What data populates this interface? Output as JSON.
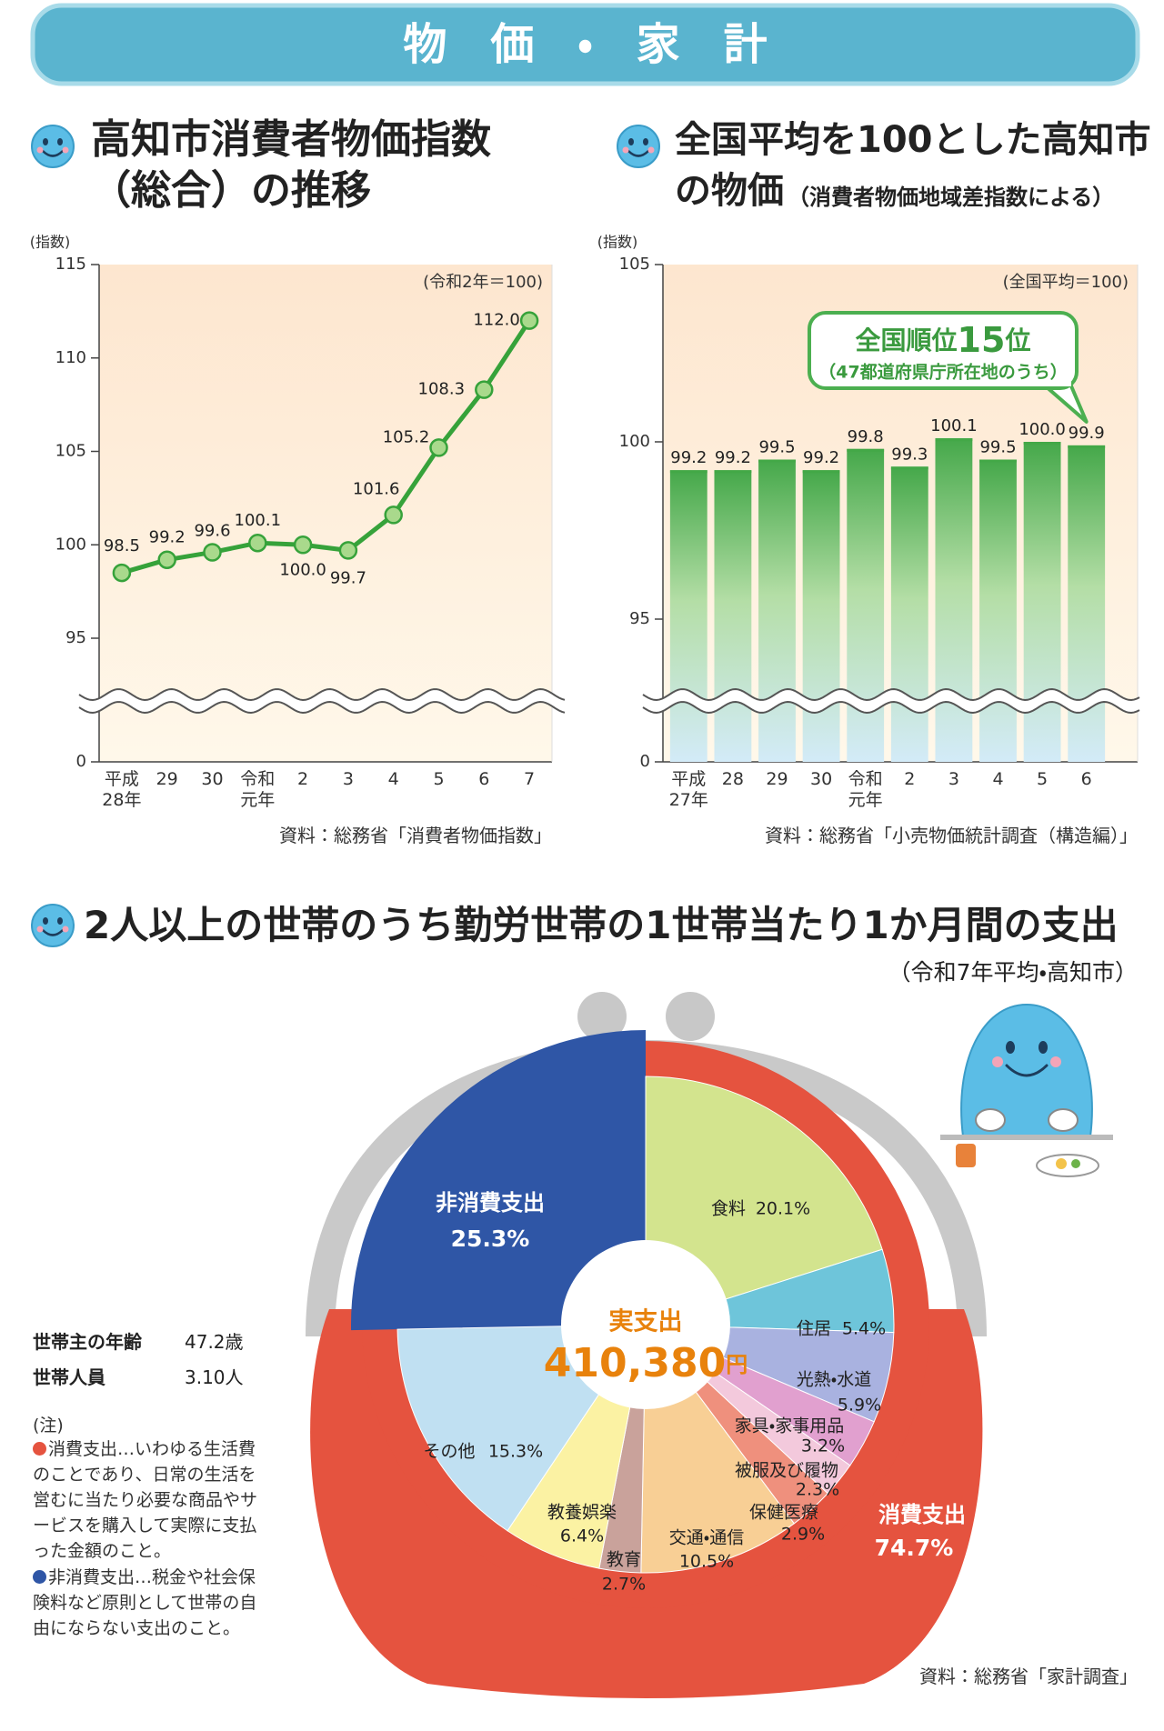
{
  "header": {
    "title": "物　価　・　家　計"
  },
  "chart_data": [
    {
      "type": "line",
      "title": "高知市消費者物価指数\n（総合）の推移",
      "y_label": "(指数)",
      "note": "(令和2年＝100)",
      "source": "資料：総務省「消費者物価指数」",
      "categories": [
        "平成\n28年",
        "29",
        "30",
        "令和\n元年",
        "2",
        "3",
        "4",
        "5",
        "6",
        "7"
      ],
      "values": [
        98.5,
        99.2,
        99.6,
        100.1,
        100.0,
        99.7,
        101.6,
        105.2,
        108.3,
        112.0
      ],
      "value_labels": [
        "98.5",
        "99.2",
        "99.6",
        "100.1",
        "100.0",
        "99.7",
        "101.6",
        "105.2",
        "108.3",
        "112.0"
      ],
      "color": "#36a23a",
      "ylim": [
        0,
        115
      ],
      "yticks": [
        0,
        95,
        100,
        105,
        110,
        115
      ],
      "broken_axis": true
    },
    {
      "type": "bar",
      "title": "全国平均を100とした高知市\nの物価",
      "subtitle": "（消費者物価地域差指数による）",
      "y_label": "(指数)",
      "note": "(全国平均＝100)",
      "source": "資料：総務省「小売物価統計調査（構造編）」",
      "callout": {
        "prefix": "全国順位",
        "rank": 15,
        "suffix": "位",
        "note": "（47都道府県庁所在地のうち）"
      },
      "categories": [
        "平成\n27年",
        "28",
        "29",
        "30",
        "令和\n元年",
        "2",
        "3",
        "4",
        "5",
        "6"
      ],
      "values": [
        99.2,
        99.2,
        99.5,
        99.2,
        99.8,
        99.3,
        100.1,
        99.5,
        100.0,
        99.9
      ],
      "value_labels": [
        "99.2",
        "99.2",
        "99.5",
        "99.2",
        "99.8",
        "99.3",
        "100.1",
        "99.5",
        "100.0",
        "99.9"
      ],
      "color": "#43a847",
      "ylim": [
        0,
        105
      ],
      "yticks": [
        0,
        95,
        100,
        105
      ],
      "broken_axis": true
    },
    {
      "type": "pie",
      "title": "2人以上の世帯のうち勤労世帯の1世帯当たり1か月間の支出",
      "subtitle": "（令和7年平均・高知市）",
      "center_label": "実支出",
      "total": {
        "value": 410380,
        "label": "410,380"
      },
      "total_unit": "円",
      "source": "資料：総務省「家計調査」",
      "categories": [
        "食料",
        "住居",
        "光熱・水道",
        "家具・家事用品",
        "被服及び履物",
        "保健医療",
        "交通・通信",
        "教育",
        "教養娯楽",
        "その他"
      ],
      "values": [
        20.1,
        5.4,
        5.9,
        3.2,
        2.3,
        2.9,
        10.5,
        2.7,
        6.4,
        15.3
      ],
      "value_labels": [
        "20.1%",
        "5.4%",
        "5.9%",
        "3.2%",
        "2.3%",
        "2.9%",
        "10.5%",
        "2.7%",
        "6.4%",
        "15.3%"
      ],
      "colors": [
        "#d3e48e",
        "#6ec5da",
        "#a9b2e0",
        "#e1a0cf",
        "#f3c9dc",
        "#ef907d",
        "#f8cf95",
        "#c9a29b",
        "#fbf2a3",
        "#c0e0f2"
      ],
      "outer": {
        "categories": [
          "消費支出",
          "非消費支出"
        ],
        "values": [
          74.7,
          25.3
        ],
        "value_labels": [
          "74.7%",
          "25.3%"
        ],
        "colors": [
          "#e5533f",
          "#2f56a6"
        ]
      }
    }
  ],
  "household": {
    "rows": [
      [
        "世帯主の年齢",
        "47.2歳"
      ],
      [
        "世帯人員",
        "3.10人"
      ]
    ]
  },
  "notes": {
    "heading": "(注)",
    "items": [
      "消費支出…いわゆる生活費のことであり、日常の生活を営むに当たり必要な商品やサービスを購入して実際に支払った金額のこと。",
      "非消費支出…税金や社会保険料など原則として世帯の自由にならない支出のこと。"
    ]
  }
}
